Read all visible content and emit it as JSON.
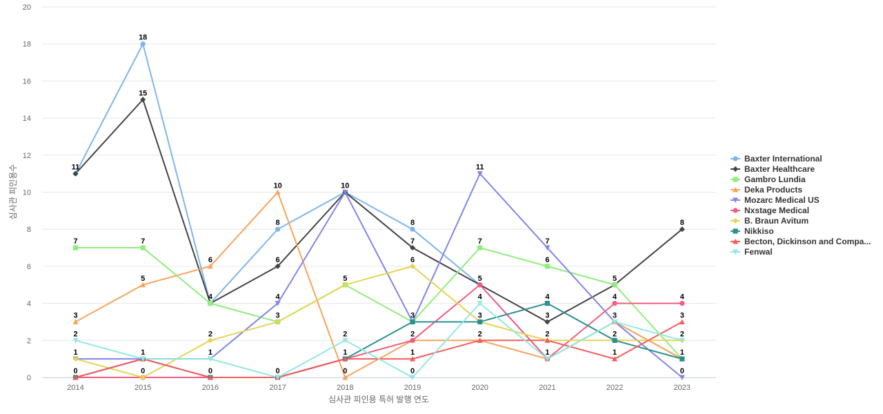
{
  "chart_data": {
    "type": "line",
    "xlabel": "심사관 피인용 특허 발행 연도",
    "ylabel": "심사관 피인용수",
    "x": [
      2014,
      2015,
      2016,
      2017,
      2018,
      2019,
      2020,
      2021,
      2022,
      2023
    ],
    "ylim": [
      0,
      20
    ],
    "yticks": [
      0,
      2,
      4,
      6,
      8,
      10,
      12,
      14,
      16,
      18,
      20
    ],
    "grid": true,
    "legend_position": "right",
    "series": [
      {
        "name": "Baxter International",
        "color": "#7cb5ec",
        "marker": "circle",
        "values": [
          11,
          18,
          4,
          8,
          10,
          8,
          5,
          1,
          3,
          1
        ]
      },
      {
        "name": "Baxter Healthcare",
        "color": "#434348",
        "marker": "diamond",
        "values": [
          11,
          15,
          4,
          6,
          10,
          7,
          5,
          3,
          5,
          8
        ]
      },
      {
        "name": "Gambro Lundia",
        "color": "#90ed7d",
        "marker": "square",
        "values": [
          7,
          7,
          4,
          3,
          5,
          3,
          7,
          6,
          5,
          1
        ]
      },
      {
        "name": "Deka Products",
        "color": "#f7a35c",
        "marker": "triangle",
        "values": [
          3,
          5,
          6,
          10,
          0,
          2,
          2,
          1,
          3,
          1
        ]
      },
      {
        "name": "Mozarc Medical US",
        "color": "#8085e9",
        "marker": "triangle-down",
        "values": [
          1,
          1,
          1,
          4,
          10,
          3,
          11,
          7,
          3,
          0
        ]
      },
      {
        "name": "Nxstage Medical",
        "color": "#f15c80",
        "marker": "circle",
        "values": [
          0,
          0,
          0,
          0,
          1,
          2,
          5,
          1,
          4,
          4
        ]
      },
      {
        "name": "B. Braun Avitum",
        "color": "#e4d354",
        "marker": "diamond",
        "values": [
          1,
          0,
          2,
          3,
          5,
          6,
          3,
          2,
          2,
          2
        ]
      },
      {
        "name": "Nikkiso",
        "color": "#2b908f",
        "marker": "square",
        "values": [
          0,
          1,
          0,
          0,
          1,
          3,
          3,
          4,
          2,
          1
        ]
      },
      {
        "name": "Becton, Dickinson and Compa...",
        "color": "#f45b5b",
        "marker": "triangle",
        "values": [
          0,
          1,
          0,
          0,
          1,
          1,
          2,
          2,
          1,
          3
        ]
      },
      {
        "name": "Fenwal",
        "color": "#91e8e1",
        "marker": "triangle-down",
        "values": [
          2,
          1,
          1,
          0,
          2,
          0,
          4,
          1,
          3,
          2
        ]
      }
    ],
    "point_labels": [
      {
        "xi": 0,
        "text": "11",
        "y": 11
      },
      {
        "xi": 0,
        "text": "7",
        "y": 7
      },
      {
        "xi": 0,
        "text": "3",
        "y": 3
      },
      {
        "xi": 0,
        "text": "2",
        "y": 2
      },
      {
        "xi": 0,
        "text": "1",
        "y": 1
      },
      {
        "xi": 0,
        "text": "0",
        "y": 0
      },
      {
        "xi": 1,
        "text": "18",
        "y": 18
      },
      {
        "xi": 1,
        "text": "15",
        "y": 15
      },
      {
        "xi": 1,
        "text": "7",
        "y": 7
      },
      {
        "xi": 1,
        "text": "5",
        "y": 5
      },
      {
        "xi": 1,
        "text": "1",
        "y": 1
      },
      {
        "xi": 1,
        "text": "0",
        "y": 0
      },
      {
        "xi": 2,
        "text": "6",
        "y": 6
      },
      {
        "xi": 2,
        "text": "4",
        "y": 4
      },
      {
        "xi": 2,
        "text": "2",
        "y": 2
      },
      {
        "xi": 2,
        "text": "1",
        "y": 1
      },
      {
        "xi": 2,
        "text": "0",
        "y": 0
      },
      {
        "xi": 3,
        "text": "10",
        "y": 10
      },
      {
        "xi": 3,
        "text": "8",
        "y": 8
      },
      {
        "xi": 3,
        "text": "6",
        "y": 6
      },
      {
        "xi": 3,
        "text": "4",
        "y": 4
      },
      {
        "xi": 3,
        "text": "3",
        "y": 3
      },
      {
        "xi": 3,
        "text": "0",
        "y": 0
      },
      {
        "xi": 4,
        "text": "10",
        "y": 10
      },
      {
        "xi": 4,
        "text": "5",
        "y": 5
      },
      {
        "xi": 4,
        "text": "2",
        "y": 2
      },
      {
        "xi": 4,
        "text": "1",
        "y": 1
      },
      {
        "xi": 4,
        "text": "0",
        "y": 0
      },
      {
        "xi": 5,
        "text": "8",
        "y": 8
      },
      {
        "xi": 5,
        "text": "7",
        "y": 7
      },
      {
        "xi": 5,
        "text": "6",
        "y": 6
      },
      {
        "xi": 5,
        "text": "3",
        "y": 3
      },
      {
        "xi": 5,
        "text": "2",
        "y": 2
      },
      {
        "xi": 5,
        "text": "1",
        "y": 1
      },
      {
        "xi": 5,
        "text": "0",
        "y": 0
      },
      {
        "xi": 6,
        "text": "11",
        "y": 11
      },
      {
        "xi": 6,
        "text": "7",
        "y": 7
      },
      {
        "xi": 6,
        "text": "5",
        "y": 5
      },
      {
        "xi": 6,
        "text": "4",
        "y": 4
      },
      {
        "xi": 6,
        "text": "3",
        "y": 3
      },
      {
        "xi": 6,
        "text": "2",
        "y": 2
      },
      {
        "xi": 7,
        "text": "7",
        "y": 7
      },
      {
        "xi": 7,
        "text": "6",
        "y": 6
      },
      {
        "xi": 7,
        "text": "4",
        "y": 4
      },
      {
        "xi": 7,
        "text": "3",
        "y": 3
      },
      {
        "xi": 7,
        "text": "2",
        "y": 2
      },
      {
        "xi": 7,
        "text": "1",
        "y": 1
      },
      {
        "xi": 8,
        "text": "5",
        "y": 5
      },
      {
        "xi": 8,
        "text": "4",
        "y": 4
      },
      {
        "xi": 8,
        "text": "3",
        "y": 3
      },
      {
        "xi": 8,
        "text": "2",
        "y": 2
      },
      {
        "xi": 8,
        "text": "1",
        "y": 1
      },
      {
        "xi": 9,
        "text": "8",
        "y": 8
      },
      {
        "xi": 9,
        "text": "4",
        "y": 4
      },
      {
        "xi": 9,
        "text": "3",
        "y": 3
      },
      {
        "xi": 9,
        "text": "2",
        "y": 2
      },
      {
        "xi": 9,
        "text": "1",
        "y": 1
      },
      {
        "xi": 9,
        "text": "0",
        "y": 0
      }
    ]
  }
}
